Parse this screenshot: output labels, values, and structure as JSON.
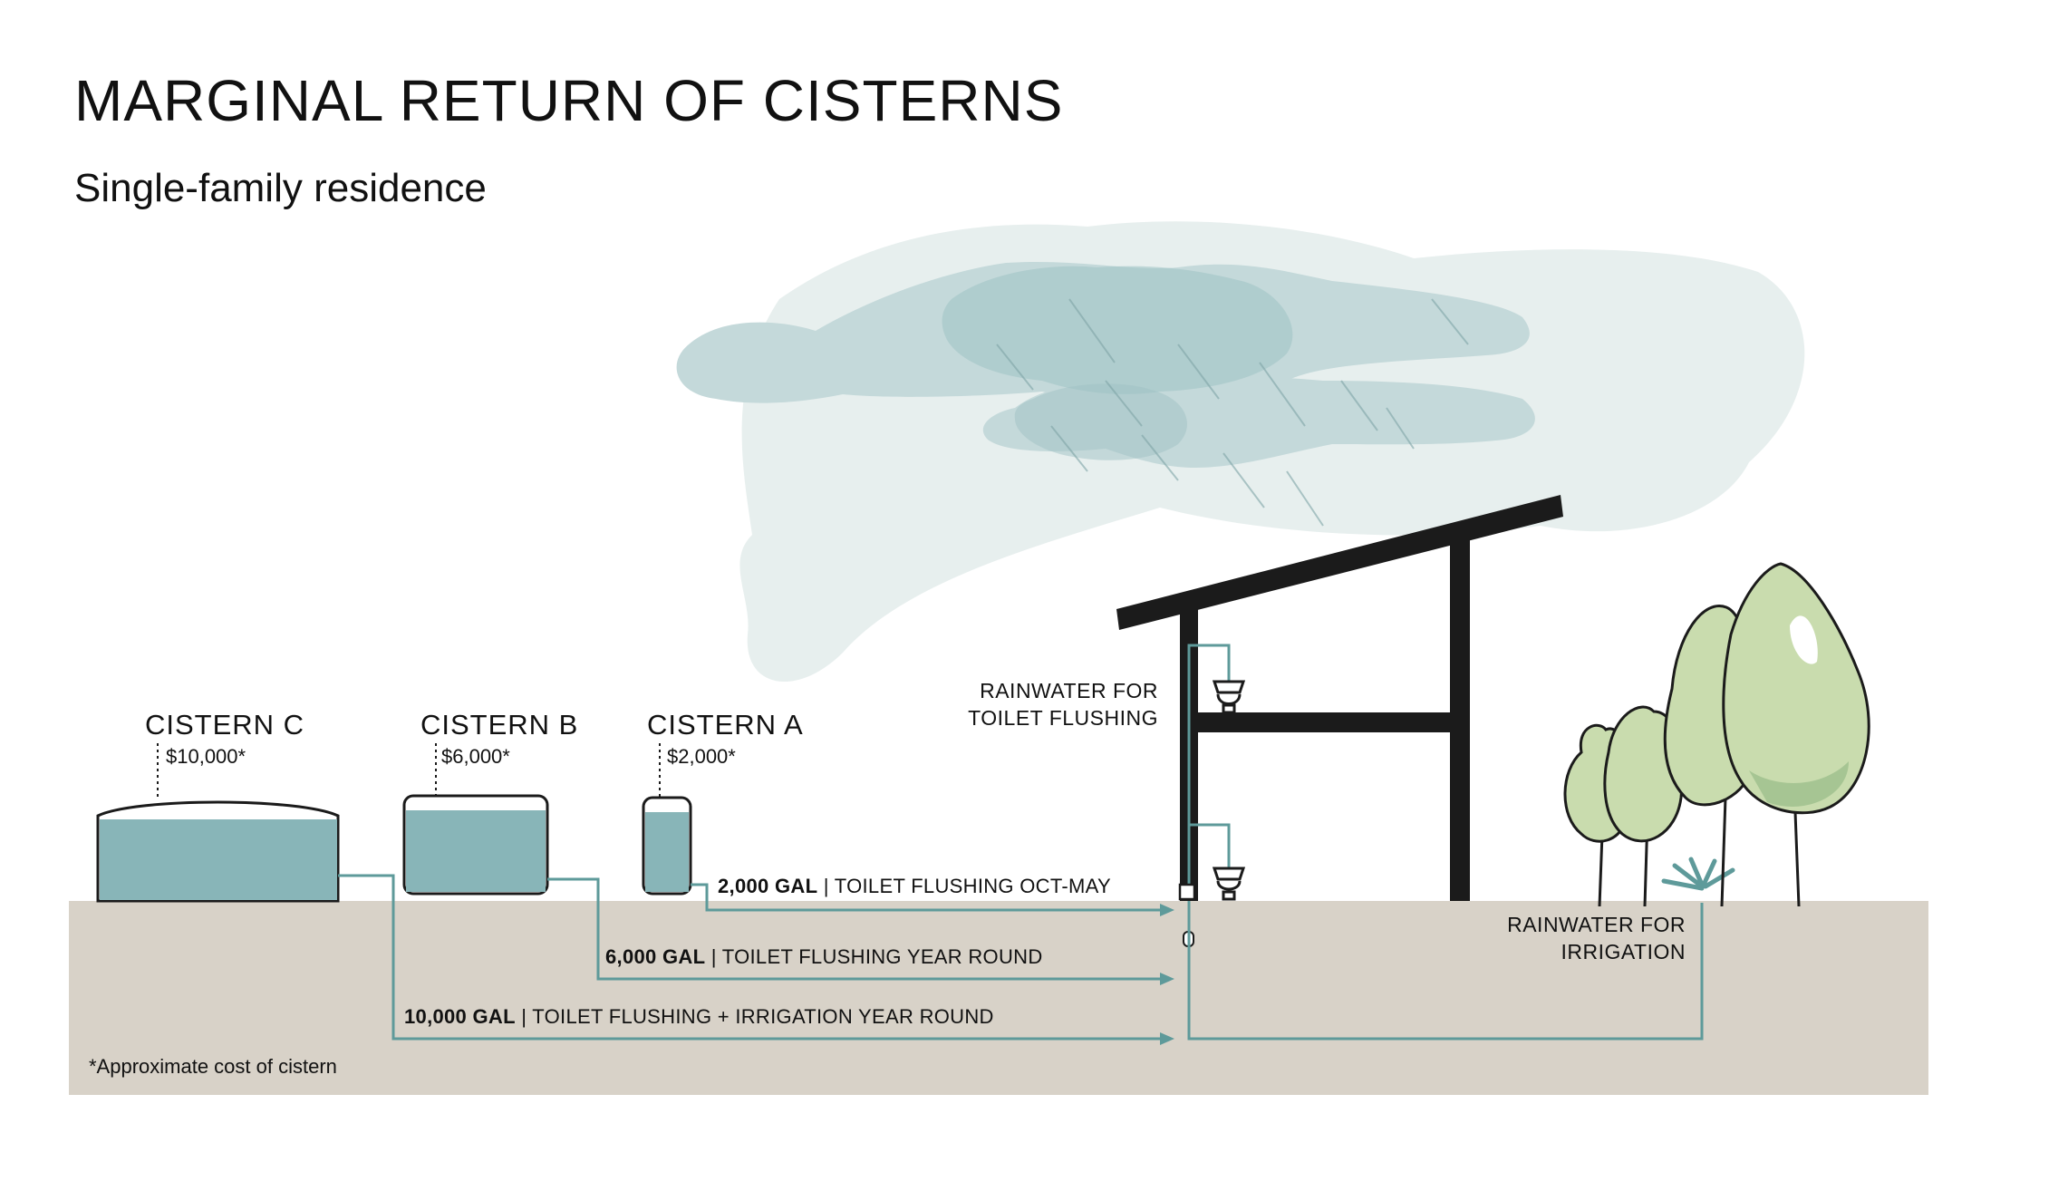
{
  "title": "MARGINAL RETURN OF CISTERNS",
  "subtitle": "Single-family residence",
  "cisterns": [
    {
      "name": "CISTERN C",
      "cost": "$10,000*"
    },
    {
      "name": "CISTERN B",
      "cost": "$6,000*"
    },
    {
      "name": "CISTERN A",
      "cost": "$2,000*"
    }
  ],
  "flows": [
    {
      "amount": "2,000 GAL",
      "use": "TOILET FLUSHING OCT-MAY"
    },
    {
      "amount": "6,000 GAL",
      "use": "TOILET FLUSHING YEAR ROUND"
    },
    {
      "amount": "10,000 GAL",
      "use": "TOILET FLUSHING + IRRIGATION YEAR ROUND"
    }
  ],
  "labels": {
    "toilet_line1": "RAINWATER FOR",
    "toilet_line2": "TOILET FLUSHING",
    "irrigation_line1": "RAINWATER FOR",
    "irrigation_line2": "IRRIGATION"
  },
  "footnote": "*Approximate cost of cistern",
  "colors": {
    "water": "#88b5b8",
    "pipe": "#5e9a9a",
    "ground": "#d8d2c8",
    "cloud_light": "#e7efee",
    "cloud_mid": "#c4d9da",
    "cloud_dark": "#9fc2c4",
    "tree_green": "#c9dcae",
    "structure": "#1b1b1b"
  }
}
